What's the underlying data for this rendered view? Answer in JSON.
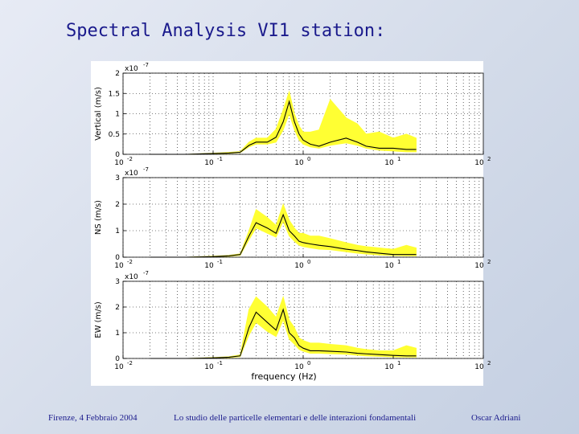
{
  "slide": {
    "title": "Spectral Analysis VI1 station:",
    "footer_left": "Firenze, 4 Febbraio 2004",
    "footer_center": "Lo studio delle particelle elementari e delle interazioni fondamentali",
    "footer_right": "Oscar Adriani"
  },
  "colors": {
    "band": "#ffff33",
    "line": "#000000",
    "grid": "#000000",
    "text": "#1a1a8c"
  },
  "chart_data": [
    {
      "type": "line",
      "xscale": "log",
      "xlim": [
        0.01,
        100
      ],
      "ylim": [
        0,
        2
      ],
      "ylabel": "Vertical (m/s)",
      "exponent_label": "x10",
      "exponent_power": "-7",
      "yticks": [
        "0",
        "0.5",
        "1",
        "1.5",
        "2"
      ],
      "ytick_values": [
        0,
        0.5,
        1,
        1.5,
        2
      ],
      "xticks": [
        "10",
        "10",
        "10",
        "10",
        "10"
      ],
      "xtick_powers": [
        "-2",
        "-1",
        "0",
        "1",
        "2"
      ],
      "xlabel": "",
      "series": [
        {
          "x": [
            0.02,
            0.05,
            0.1,
            0.15,
            0.2,
            0.25,
            0.3,
            0.4,
            0.5,
            0.6,
            0.7,
            0.8,
            0.9,
            1.0,
            1.2,
            1.5,
            2.0,
            3.0,
            4.0,
            5.0,
            7.0,
            10,
            14,
            18
          ],
          "y": [
            0.0,
            0.0,
            0.02,
            0.03,
            0.05,
            0.22,
            0.3,
            0.3,
            0.42,
            0.8,
            1.3,
            0.8,
            0.5,
            0.35,
            0.25,
            0.2,
            0.3,
            0.4,
            0.3,
            0.2,
            0.15,
            0.15,
            0.12,
            0.12
          ],
          "y_low": [
            0.0,
            0.0,
            0.01,
            0.02,
            0.04,
            0.18,
            0.25,
            0.25,
            0.3,
            0.6,
            1.0,
            0.6,
            0.35,
            0.25,
            0.18,
            0.15,
            0.22,
            0.28,
            0.22,
            0.15,
            0.1,
            0.08,
            0.06,
            0.06
          ],
          "y_high": [
            0.0,
            0.0,
            0.03,
            0.05,
            0.07,
            0.3,
            0.4,
            0.4,
            0.62,
            1.1,
            1.55,
            1.0,
            0.7,
            0.55,
            0.55,
            0.6,
            1.35,
            0.9,
            0.75,
            0.5,
            0.55,
            0.4,
            0.5,
            0.4
          ]
        }
      ]
    },
    {
      "type": "line",
      "xscale": "log",
      "xlim": [
        0.01,
        100
      ],
      "ylim": [
        0,
        3
      ],
      "ylabel": "NS (m/s)",
      "exponent_label": "x10",
      "exponent_power": "-7",
      "yticks": [
        "0",
        "1",
        "2",
        "3"
      ],
      "ytick_values": [
        0,
        1,
        2,
        3
      ],
      "xticks": [
        "10",
        "10",
        "10",
        "10",
        "10"
      ],
      "xtick_powers": [
        "-2",
        "-1",
        "0",
        "1",
        "2"
      ],
      "xlabel": "",
      "series": [
        {
          "x": [
            0.02,
            0.05,
            0.1,
            0.15,
            0.2,
            0.25,
            0.3,
            0.4,
            0.5,
            0.6,
            0.7,
            0.8,
            0.9,
            1.0,
            1.2,
            1.5,
            2.0,
            3.0,
            4.0,
            5.0,
            7.0,
            10,
            14,
            18
          ],
          "y": [
            0.0,
            0.0,
            0.02,
            0.05,
            0.1,
            0.8,
            1.3,
            1.1,
            0.9,
            1.6,
            1.0,
            0.8,
            0.6,
            0.55,
            0.5,
            0.45,
            0.4,
            0.3,
            0.25,
            0.2,
            0.15,
            0.1,
            0.1,
            0.1
          ],
          "y_low": [
            0.0,
            0.0,
            0.01,
            0.03,
            0.07,
            0.65,
            1.1,
            0.9,
            0.75,
            1.35,
            0.8,
            0.6,
            0.45,
            0.4,
            0.35,
            0.3,
            0.28,
            0.2,
            0.15,
            0.12,
            0.08,
            0.06,
            0.05,
            0.05
          ],
          "y_high": [
            0.0,
            0.0,
            0.04,
            0.07,
            0.13,
            1.0,
            1.8,
            1.5,
            1.2,
            2.0,
            1.4,
            1.1,
            0.9,
            0.9,
            0.8,
            0.8,
            0.7,
            0.55,
            0.45,
            0.4,
            0.35,
            0.3,
            0.45,
            0.35
          ]
        }
      ]
    },
    {
      "type": "line",
      "xscale": "log",
      "xlim": [
        0.01,
        100
      ],
      "ylim": [
        0,
        3
      ],
      "ylabel": "EW (m/s)",
      "exponent_label": "x10",
      "exponent_power": "-7",
      "yticks": [
        "0",
        "1",
        "2",
        "3"
      ],
      "ytick_values": [
        0,
        1,
        2,
        3
      ],
      "xticks": [
        "10",
        "10",
        "10",
        "10",
        "10"
      ],
      "xtick_powers": [
        "-2",
        "-1",
        "0",
        "1",
        "2"
      ],
      "xlabel": "frequency (Hz)",
      "series": [
        {
          "x": [
            0.02,
            0.05,
            0.1,
            0.15,
            0.2,
            0.25,
            0.3,
            0.4,
            0.5,
            0.6,
            0.7,
            0.8,
            0.9,
            1.0,
            1.2,
            1.5,
            2.0,
            3.0,
            4.0,
            5.0,
            7.0,
            10,
            14,
            18
          ],
          "y": [
            0.0,
            0.0,
            0.02,
            0.05,
            0.1,
            1.2,
            1.8,
            1.4,
            1.1,
            1.9,
            1.0,
            0.8,
            0.5,
            0.4,
            0.3,
            0.3,
            0.28,
            0.25,
            0.2,
            0.18,
            0.15,
            0.12,
            0.1,
            0.1
          ],
          "y_low": [
            0.0,
            0.0,
            0.01,
            0.03,
            0.07,
            0.9,
            1.4,
            1.05,
            0.85,
            1.5,
            0.75,
            0.55,
            0.35,
            0.28,
            0.2,
            0.2,
            0.18,
            0.16,
            0.12,
            0.1,
            0.08,
            0.06,
            0.05,
            0.05
          ],
          "y_high": [
            0.0,
            0.0,
            0.04,
            0.07,
            0.14,
            1.9,
            2.4,
            2.0,
            1.6,
            2.4,
            1.5,
            1.2,
            0.8,
            0.7,
            0.6,
            0.6,
            0.55,
            0.5,
            0.4,
            0.35,
            0.3,
            0.3,
            0.5,
            0.4
          ]
        }
      ]
    }
  ]
}
